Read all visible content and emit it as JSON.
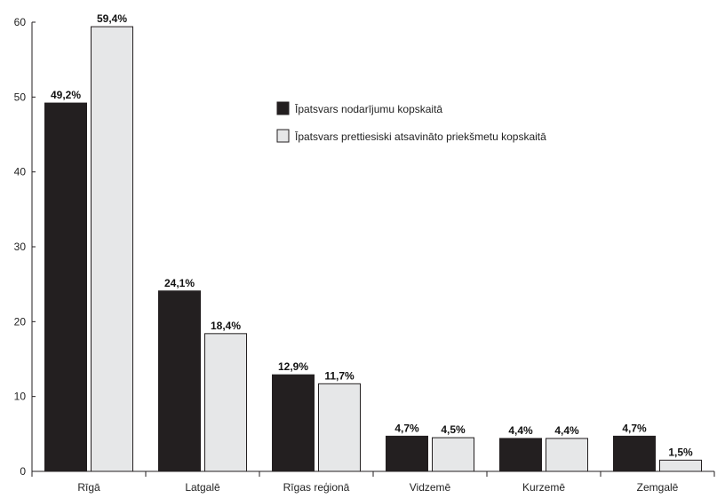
{
  "chart_data": {
    "type": "bar",
    "categories": [
      "Rīgā",
      "Latgalē",
      "Rīgas reģionā",
      "Vidzemē",
      "Kurzemē",
      "Zemgalē"
    ],
    "series": [
      {
        "name": "Īpatsvars nodarījumu kopskaitā",
        "color": "#231f20",
        "values": [
          49.2,
          24.1,
          12.9,
          4.7,
          4.4,
          4.7
        ],
        "labels": [
          "49,2%",
          "24,1%",
          "12,9%",
          "4,7%",
          "4,4%",
          "4,7%"
        ]
      },
      {
        "name": "Īpatsvars prettiesiski atsavināto priekšmetu kopskaitā",
        "color": "#e6e7e8",
        "values": [
          59.4,
          18.4,
          11.7,
          4.5,
          4.4,
          1.5
        ],
        "labels": [
          "59,4%",
          "18,4%",
          "11,7%",
          "4,5%",
          "4,4%",
          "1,5%"
        ]
      }
    ],
    "yticks": [
      "0",
      "10",
      "20",
      "30",
      "40",
      "50",
      "60"
    ],
    "ylim": [
      0,
      60
    ],
    "grid": false,
    "legend_position": "top-right"
  }
}
